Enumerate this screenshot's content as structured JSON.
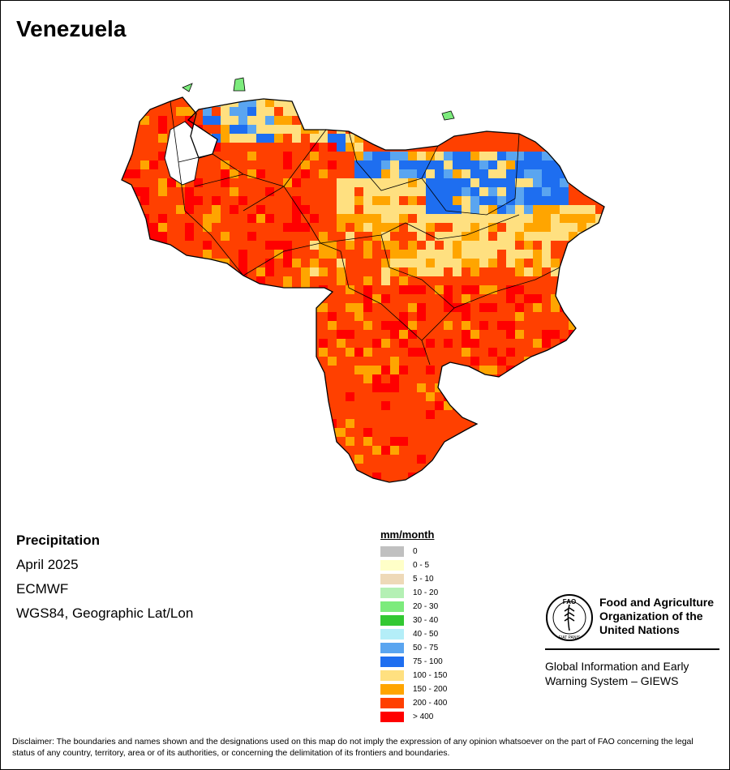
{
  "map": {
    "title": "Venezuela",
    "variable": "Precipitation",
    "period": "April 2025",
    "source": "ECMWF",
    "projection": "WGS84, Geographic Lat/Lon"
  },
  "legend": {
    "title": "mm/month",
    "classes": [
      {
        "label": "0",
        "color": "#c0c0c0"
      },
      {
        "label": "0 - 5",
        "color": "#ffffc8"
      },
      {
        "label": "5 - 10",
        "color": "#eed9b8"
      },
      {
        "label": "10 - 20",
        "color": "#b4f0b4"
      },
      {
        "label": "20 - 30",
        "color": "#7ceb7c"
      },
      {
        "label": "30 - 40",
        "color": "#32c832"
      },
      {
        "label": "40 - 50",
        "color": "#b4eef8"
      },
      {
        "label": "50 - 75",
        "color": "#5aa5f0"
      },
      {
        "label": "75 - 100",
        "color": "#1e6ef0"
      },
      {
        "label": "100 - 150",
        "color": "#ffe080"
      },
      {
        "label": "150 - 200",
        "color": "#ffa500"
      },
      {
        "label": "200 - 400",
        "color": "#ff4000"
      },
      {
        "label": "> 400",
        "color": "#ff0000"
      }
    ]
  },
  "logo": {
    "org_line1": "Food and Agriculture",
    "org_line2": "Organization of the",
    "org_line3": "United Nations",
    "emblem_letters": "FAO",
    "emblem_motto": "FIAT PANIS"
  },
  "system": {
    "line1": "Global Information and Early",
    "line2": "Warning System – GIEWS"
  },
  "disclaimer": "Disclaimer: The boundaries and names shown and the designations used on this map do not imply the expression of any opinion whatsoever on the part of FAO concerning the legal status of any country, territory, area or of its authorities, or concerning the delimitation of its frontiers and boundaries."
}
